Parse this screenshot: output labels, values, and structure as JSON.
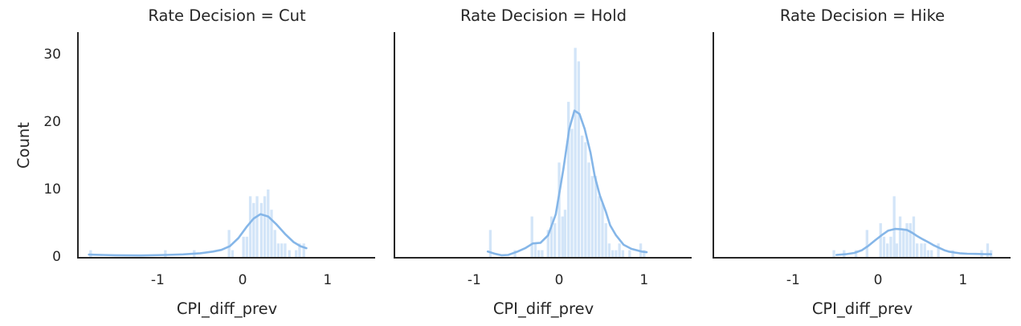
{
  "figure": {
    "ylabel": "Count",
    "xlabel": "CPI_diff_prev",
    "background_color": "#ffffff",
    "text_color": "#262626",
    "spine_color": "#262626",
    "bar_color": "#d3e5f8",
    "kde_color": "#85b6e8"
  },
  "chart_data": [
    {
      "type": "histogram_kde",
      "title": "Rate Decision = Cut",
      "xlabel": "CPI_diff_prev",
      "ylabel": "Count",
      "xlim": [
        -1.93,
        1.56
      ],
      "ylim": [
        0,
        33.2
      ],
      "xticks": [
        -1,
        0,
        1
      ],
      "yticks": [
        0,
        10,
        20,
        30
      ],
      "grid": false,
      "legend": "none",
      "bin_width": 0.04,
      "bars": [
        [
          -1.79,
          1
        ],
        [
          -0.91,
          1
        ],
        [
          -0.57,
          1
        ],
        [
          -0.16,
          4
        ],
        [
          -0.12,
          1
        ],
        [
          0.01,
          3
        ],
        [
          0.05,
          3
        ],
        [
          0.09,
          9
        ],
        [
          0.13,
          8
        ],
        [
          0.17,
          9
        ],
        [
          0.22,
          8
        ],
        [
          0.26,
          9
        ],
        [
          0.3,
          10
        ],
        [
          0.34,
          7
        ],
        [
          0.38,
          4
        ],
        [
          0.42,
          2
        ],
        [
          0.46,
          2
        ],
        [
          0.5,
          2
        ],
        [
          0.55,
          1
        ],
        [
          0.63,
          1
        ],
        [
          0.67,
          2
        ],
        [
          0.72,
          2
        ]
      ],
      "kde": [
        [
          -1.81,
          0.35
        ],
        [
          -1.5,
          0.25
        ],
        [
          -1.2,
          0.22
        ],
        [
          -0.9,
          0.3
        ],
        [
          -0.7,
          0.38
        ],
        [
          -0.5,
          0.55
        ],
        [
          -0.35,
          0.8
        ],
        [
          -0.25,
          1.05
        ],
        [
          -0.15,
          1.6
        ],
        [
          -0.05,
          2.8
        ],
        [
          0.05,
          4.5
        ],
        [
          0.13,
          5.7
        ],
        [
          0.21,
          6.35
        ],
        [
          0.3,
          6.0
        ],
        [
          0.4,
          4.8
        ],
        [
          0.5,
          3.4
        ],
        [
          0.6,
          2.2
        ],
        [
          0.68,
          1.6
        ],
        [
          0.75,
          1.3
        ]
      ]
    },
    {
      "type": "histogram_kde",
      "title": "Rate Decision = Hold",
      "xlabel": "CPI_diff_prev",
      "ylabel": "Count",
      "xlim": [
        -1.93,
        1.56
      ],
      "ylim": [
        0,
        33.2
      ],
      "xticks": [
        -1,
        0,
        1
      ],
      "yticks": [
        0,
        10,
        20,
        30
      ],
      "grid": false,
      "legend": "none",
      "bin_width": 0.04,
      "bars": [
        [
          -0.81,
          4
        ],
        [
          -0.52,
          1
        ],
        [
          -0.32,
          6
        ],
        [
          -0.28,
          2
        ],
        [
          -0.24,
          1
        ],
        [
          -0.2,
          1
        ],
        [
          -0.13,
          4
        ],
        [
          -0.09,
          6
        ],
        [
          -0.05,
          5
        ],
        [
          0.0,
          14
        ],
        [
          0.04,
          6
        ],
        [
          0.07,
          7
        ],
        [
          0.11,
          23
        ],
        [
          0.15,
          19
        ],
        [
          0.19,
          31
        ],
        [
          0.23,
          29
        ],
        [
          0.27,
          18
        ],
        [
          0.31,
          17
        ],
        [
          0.35,
          14
        ],
        [
          0.39,
          12
        ],
        [
          0.43,
          12
        ],
        [
          0.47,
          9
        ],
        [
          0.51,
          8
        ],
        [
          0.55,
          5
        ],
        [
          0.59,
          2
        ],
        [
          0.63,
          1
        ],
        [
          0.67,
          1
        ],
        [
          0.71,
          2
        ],
        [
          0.75,
          1
        ],
        [
          0.83,
          1
        ],
        [
          0.96,
          2
        ],
        [
          1.0,
          1
        ]
      ],
      "kde": [
        [
          -0.84,
          0.8
        ],
        [
          -0.75,
          0.45
        ],
        [
          -0.68,
          0.25
        ],
        [
          -0.6,
          0.3
        ],
        [
          -0.49,
          0.8
        ],
        [
          -0.4,
          1.3
        ],
        [
          -0.31,
          2.0
        ],
        [
          -0.22,
          2.1
        ],
        [
          -0.13,
          3.2
        ],
        [
          -0.04,
          6.3
        ],
        [
          0.05,
          13
        ],
        [
          0.12,
          19
        ],
        [
          0.18,
          21.7
        ],
        [
          0.24,
          21.2
        ],
        [
          0.3,
          19
        ],
        [
          0.37,
          15.4
        ],
        [
          0.42,
          11.9
        ],
        [
          0.48,
          9.1
        ],
        [
          0.55,
          6.7
        ],
        [
          0.6,
          4.7
        ],
        [
          0.67,
          3.2
        ],
        [
          0.76,
          1.8
        ],
        [
          0.85,
          1.2
        ],
        [
          0.97,
          0.8
        ],
        [
          1.03,
          0.7
        ]
      ]
    },
    {
      "type": "histogram_kde",
      "title": "Rate Decision = Hike",
      "xlabel": "CPI_diff_prev",
      "ylabel": "Count",
      "xlim": [
        -1.93,
        1.56
      ],
      "ylim": [
        0,
        33.2
      ],
      "xticks": [
        -1,
        0,
        1
      ],
      "yticks": [
        0,
        10,
        20,
        30
      ],
      "grid": false,
      "legend": "none",
      "bin_width": 0.04,
      "bars": [
        [
          -0.52,
          1
        ],
        [
          -0.4,
          1
        ],
        [
          -0.26,
          1
        ],
        [
          -0.13,
          4
        ],
        [
          0.03,
          5
        ],
        [
          0.07,
          3
        ],
        [
          0.11,
          2
        ],
        [
          0.15,
          3
        ],
        [
          0.19,
          9
        ],
        [
          0.22,
          2
        ],
        [
          0.26,
          6
        ],
        [
          0.3,
          4
        ],
        [
          0.34,
          5
        ],
        [
          0.38,
          5
        ],
        [
          0.42,
          6
        ],
        [
          0.46,
          2
        ],
        [
          0.51,
          2
        ],
        [
          0.55,
          2
        ],
        [
          0.59,
          1
        ],
        [
          0.63,
          1
        ],
        [
          0.71,
          2
        ],
        [
          0.88,
          1
        ],
        [
          1.22,
          1
        ],
        [
          1.29,
          2
        ],
        [
          1.33,
          1
        ]
      ],
      "kde": [
        [
          -0.49,
          0.3
        ],
        [
          -0.38,
          0.4
        ],
        [
          -0.28,
          0.6
        ],
        [
          -0.19,
          1.0
        ],
        [
          -0.12,
          1.6
        ],
        [
          -0.04,
          2.4
        ],
        [
          0.04,
          3.2
        ],
        [
          0.12,
          3.9
        ],
        [
          0.2,
          4.15
        ],
        [
          0.28,
          4.1
        ],
        [
          0.34,
          4.0
        ],
        [
          0.4,
          3.6
        ],
        [
          0.46,
          3.1
        ],
        [
          0.53,
          2.6
        ],
        [
          0.59,
          2.2
        ],
        [
          0.66,
          1.7
        ],
        [
          0.71,
          1.4
        ],
        [
          0.78,
          1.0
        ],
        [
          0.83,
          0.8
        ],
        [
          0.9,
          0.65
        ],
        [
          0.96,
          0.55
        ],
        [
          1.05,
          0.48
        ],
        [
          1.15,
          0.45
        ],
        [
          1.25,
          0.42
        ],
        [
          1.33,
          0.4
        ]
      ]
    }
  ]
}
